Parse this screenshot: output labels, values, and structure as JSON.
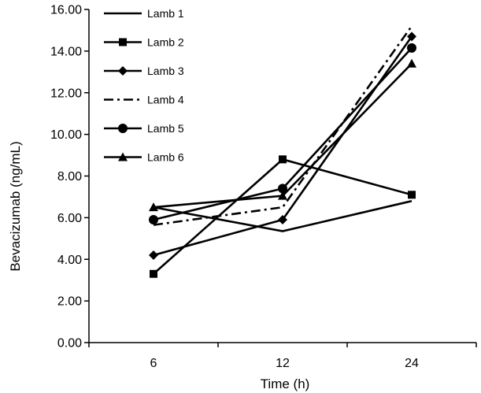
{
  "chart_data": {
    "type": "line",
    "title": "",
    "xlabel": "Time (h)",
    "ylabel": "Bevacizumab (ng/mL)",
    "categories": [
      "6",
      "12",
      "24"
    ],
    "ylim": [
      0,
      16
    ],
    "ytick_labels": [
      "0.00",
      "2.00",
      "4.00",
      "6.00",
      "8.00",
      "10.00",
      "12.00",
      "14.00",
      "16.00"
    ],
    "grid": false,
    "legend_position": "top-left",
    "series": [
      {
        "name": "Lamb 1",
        "marker": "none",
        "dash": "solid",
        "values": [
          6.5,
          5.35,
          6.8
        ]
      },
      {
        "name": "Lamb 2",
        "marker": "square",
        "dash": "solid",
        "values": [
          3.3,
          8.8,
          7.1
        ]
      },
      {
        "name": "Lamb 3",
        "marker": "diamond",
        "dash": "solid",
        "values": [
          4.2,
          5.9,
          14.7
        ]
      },
      {
        "name": "Lamb 4",
        "marker": "none",
        "dash": "dashdot",
        "values": [
          5.65,
          6.5,
          15.2
        ]
      },
      {
        "name": "Lamb 5",
        "marker": "circle",
        "dash": "solid",
        "values": [
          5.9,
          7.4,
          14.15
        ]
      },
      {
        "name": "Lamb 6",
        "marker": "triangle",
        "dash": "solid",
        "values": [
          6.5,
          7.05,
          13.4
        ]
      }
    ],
    "line_color": "#000000"
  }
}
